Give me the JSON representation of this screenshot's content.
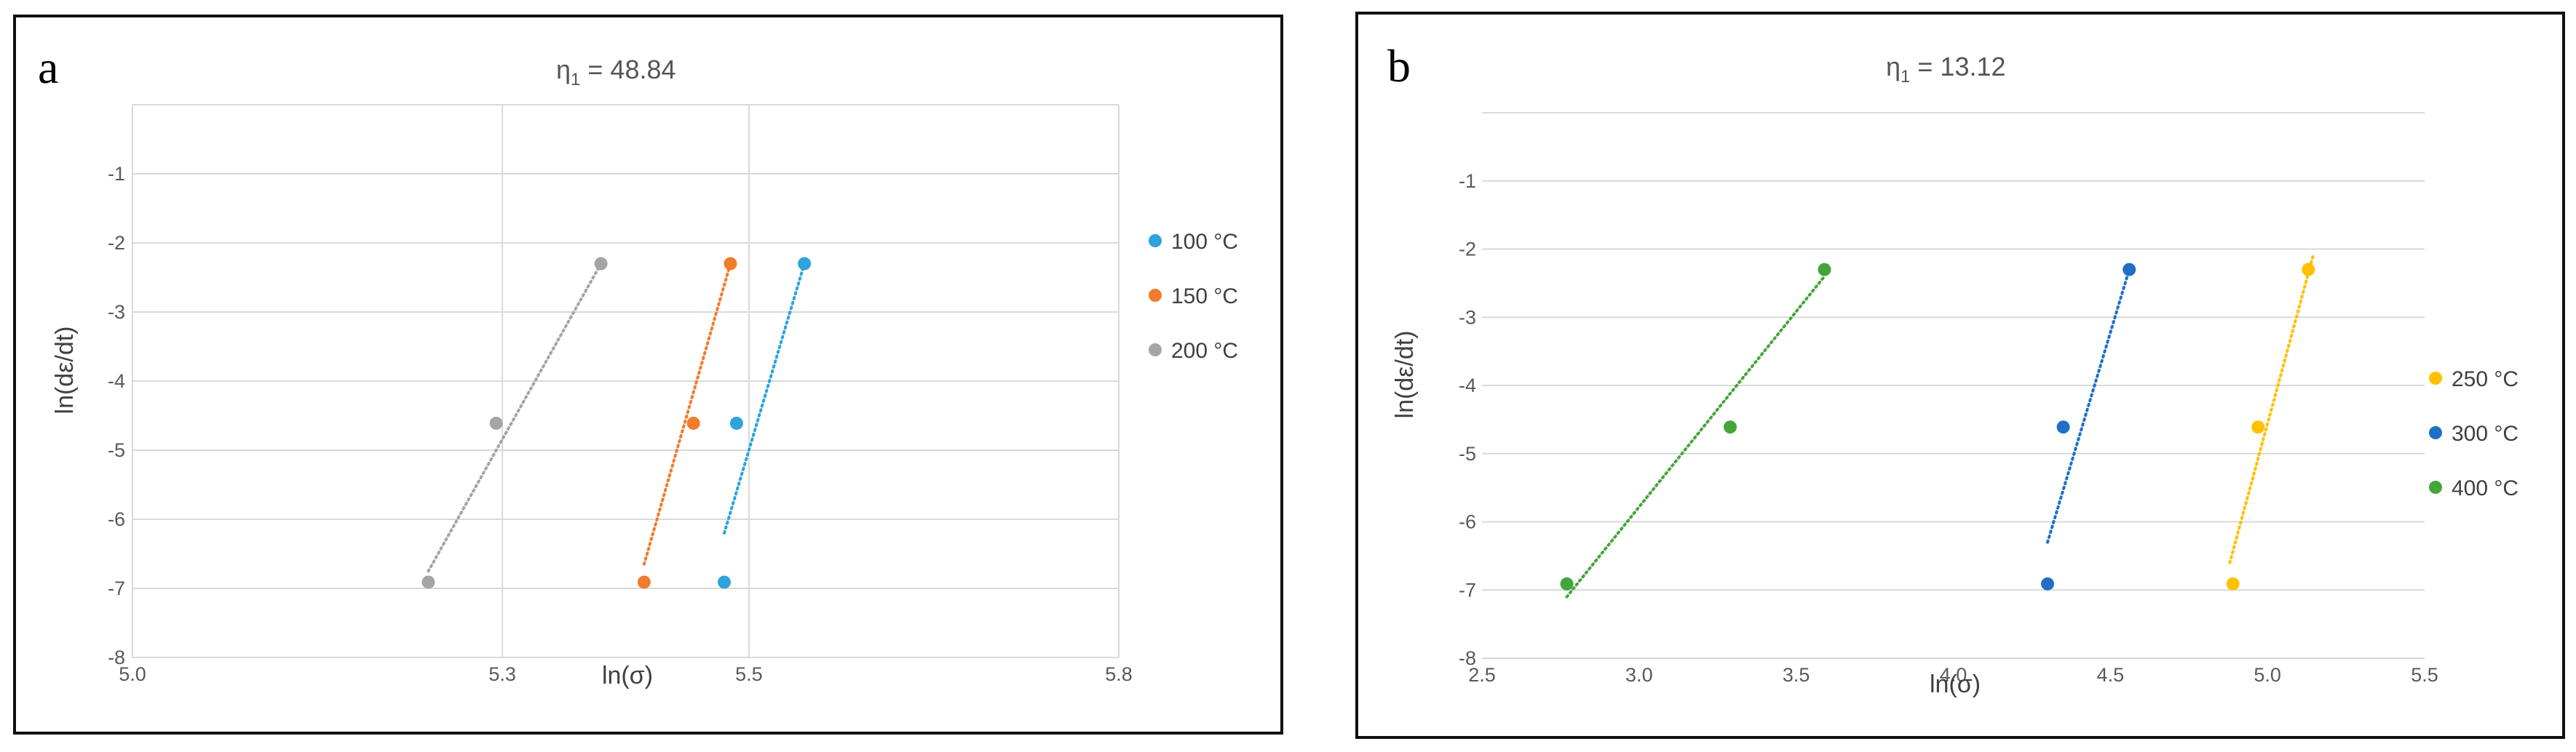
{
  "panels": [
    {
      "letter": "a",
      "title_prefix": "η",
      "title_sub": "1",
      "title_suffix": " = 48.84",
      "chart_data": {
        "type": "scatter",
        "title": "η1 = 48.84",
        "xlabel": "ln(σ)",
        "ylabel": "ln(dε/dt)",
        "xlim": [
          5.0,
          5.8
        ],
        "ylim": [
          -8,
          0
        ],
        "xticks": [
          5.0,
          5.3,
          5.5,
          5.8
        ],
        "xtick_labels": [
          "5.0",
          "5.3",
          "5.5",
          "5.8"
        ],
        "yticks": [
          -1,
          -2,
          -3,
          -4,
          -5,
          -6,
          -7,
          -8
        ],
        "ytick_labels": [
          "-1",
          "-2",
          "-3",
          "-4",
          "-5",
          "-6",
          "-7",
          "-8"
        ],
        "vertical_gridlines": true,
        "horizontal_gridlines": true,
        "trendlines": "linear, dotted",
        "legend_position": "right",
        "series": [
          {
            "name": "100 °C",
            "color": "#2ea3de",
            "points": [
              [
                5.48,
                -6.91
              ],
              [
                5.49,
                -4.61
              ],
              [
                5.545,
                -2.3
              ]
            ],
            "trend": [
              [
                5.48,
                -6.2
              ],
              [
                5.545,
                -2.3
              ]
            ]
          },
          {
            "name": "150 °C",
            "color": "#f07c2c",
            "points": [
              [
                5.415,
                -6.91
              ],
              [
                5.455,
                -4.61
              ],
              [
                5.485,
                -2.3
              ]
            ],
            "trend": [
              [
                5.415,
                -6.65
              ],
              [
                5.485,
                -2.3
              ]
            ]
          },
          {
            "name": "200 °C",
            "color": "#a5a5a5",
            "points": [
              [
                5.24,
                -6.91
              ],
              [
                5.295,
                -4.61
              ],
              [
                5.38,
                -2.3
              ]
            ],
            "trend": [
              [
                5.24,
                -6.75
              ],
              [
                5.38,
                -2.3
              ]
            ]
          }
        ]
      }
    },
    {
      "letter": "b",
      "title_prefix": "η",
      "title_sub": "1",
      "title_suffix": " = 13.12",
      "chart_data": {
        "type": "scatter",
        "title": "η1 = 13.12",
        "xlabel": "ln(σ)",
        "ylabel": "ln(dε/dt)",
        "xlim": [
          2.5,
          5.5
        ],
        "ylim": [
          -8,
          0
        ],
        "xticks": [
          2.5,
          3.0,
          3.5,
          4.0,
          4.5,
          5.0,
          5.5
        ],
        "xtick_labels": [
          "2.5",
          "3.0",
          "3.5",
          "4.0",
          "4.5",
          "5.0",
          "5.5"
        ],
        "yticks": [
          -1,
          -2,
          -3,
          -4,
          -5,
          -6,
          -7,
          -8
        ],
        "ytick_labels": [
          "-1",
          "-2",
          "-3",
          "-4",
          "-5",
          "-6",
          "-7",
          "-8"
        ],
        "vertical_gridlines": false,
        "horizontal_gridlines": true,
        "trendlines": "linear, dotted",
        "legend_position": "right",
        "series": [
          {
            "name": "250 °C",
            "color": "#ffc000",
            "points": [
              [
                4.89,
                -6.91
              ],
              [
                4.97,
                -4.61
              ],
              [
                5.13,
                -2.3
              ]
            ],
            "trend": [
              [
                4.88,
                -6.6
              ],
              [
                5.145,
                -2.1
              ]
            ]
          },
          {
            "name": "300 °C",
            "color": "#1f6fc6",
            "points": [
              [
                4.3,
                -6.91
              ],
              [
                4.35,
                -4.61
              ],
              [
                4.56,
                -2.3
              ]
            ],
            "trend": [
              [
                4.3,
                -6.3
              ],
              [
                4.56,
                -2.3
              ]
            ]
          },
          {
            "name": "400 °C",
            "color": "#44a53a",
            "points": [
              [
                2.77,
                -6.91
              ],
              [
                3.29,
                -4.61
              ],
              [
                3.59,
                -2.3
              ]
            ],
            "trend": [
              [
                2.77,
                -7.1
              ],
              [
                3.59,
                -2.4
              ]
            ]
          }
        ]
      }
    }
  ]
}
